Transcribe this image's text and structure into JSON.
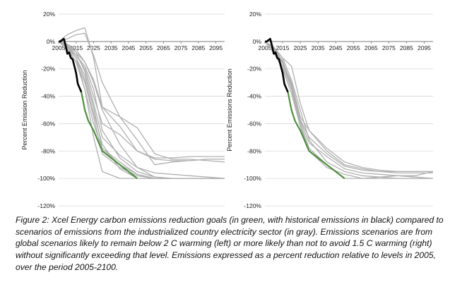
{
  "chart_data": [
    {
      "type": "line",
      "ylabel": "Percent Emission Reduction",
      "ylim": [
        -120,
        20
      ],
      "yticks": [
        20,
        0,
        -20,
        -40,
        -60,
        -80,
        -100,
        -120
      ],
      "ytick_labels": [
        "20%",
        "0%",
        "-20%",
        "-40%",
        "-60%",
        "-80%",
        "-100%",
        "-120%"
      ],
      "xlim": [
        2005,
        2100
      ],
      "xtick_labels": [
        "2005",
        "2015",
        "2025",
        "2035",
        "2045",
        "2055",
        "2065",
        "2075",
        "2085",
        "2095"
      ],
      "grid": true,
      "historical": {
        "color": "#000000",
        "x": [
          2005,
          2006,
          2007,
          2008,
          2009,
          2010,
          2011,
          2012,
          2013,
          2014,
          2015,
          2016,
          2017,
          2018
        ],
        "y": [
          0,
          0,
          1,
          2,
          -3,
          -9,
          -8,
          -12,
          -13,
          -18,
          -23,
          -31,
          -34,
          -37
        ]
      },
      "goal": {
        "color": "#4f8f3f",
        "x": [
          2018,
          2020,
          2022,
          2025,
          2030,
          2040,
          2050
        ],
        "y": [
          -37,
          -50,
          -58,
          -65,
          -80,
          -90,
          -100
        ]
      },
      "scenarios": {
        "color": "#b0b0b0",
        "lines": [
          {
            "x": [
              2005,
              2010,
              2015,
              2020,
              2025,
              2030,
              2040,
              2050,
              2060,
              2070,
              2080,
              2090,
              2100
            ],
            "y": [
              0,
              5,
              8,
              10,
              -12,
              -48,
              -55,
              -63,
              -82,
              -86,
              -86,
              -87,
              -88
            ]
          },
          {
            "x": [
              2005,
              2010,
              2015,
              2020,
              2025,
              2030,
              2040,
              2050,
              2060,
              2070,
              2080,
              2090,
              2100
            ],
            "y": [
              0,
              2,
              5,
              6,
              -10,
              -30,
              -55,
              -72,
              -90,
              -88,
              -87,
              -86,
              -86
            ]
          },
          {
            "x": [
              2005,
              2010,
              2015,
              2020,
              2025,
              2030,
              2040,
              2050,
              2060,
              2070,
              2080,
              2090,
              2100
            ],
            "y": [
              0,
              -3,
              -10,
              -20,
              -40,
              -60,
              -68,
              -80,
              -85,
              -85,
              -84,
              -84,
              -84
            ]
          },
          {
            "x": [
              2005,
              2010,
              2015,
              2020,
              2025,
              2030,
              2040,
              2050,
              2060,
              2070,
              2080,
              2090,
              2100
            ],
            "y": [
              0,
              -5,
              -12,
              -25,
              -48,
              -78,
              -90,
              -97,
              -100,
              -100,
              -100,
              -100,
              -100
            ]
          },
          {
            "x": [
              2005,
              2010,
              2015,
              2020,
              2025,
              2030,
              2040,
              2050,
              2060,
              2070,
              2080,
              2090,
              2100
            ],
            "y": [
              0,
              -4,
              -10,
              -18,
              -35,
              -65,
              -85,
              -95,
              -99,
              -100,
              -100,
              -100,
              -100
            ]
          },
          {
            "x": [
              2005,
              2010,
              2015,
              2020,
              2025,
              2030,
              2040,
              2050,
              2060,
              2070,
              2080,
              2090,
              2100
            ],
            "y": [
              0,
              -6,
              -15,
              -30,
              -55,
              -82,
              -92,
              -98,
              -100,
              -100,
              -100,
              -100,
              -100
            ]
          },
          {
            "x": [
              2005,
              2010,
              2015,
              2020,
              2025,
              2030,
              2040,
              2050,
              2060,
              2070,
              2080,
              2090,
              2100
            ],
            "y": [
              0,
              -3,
              -8,
              -15,
              -30,
              -50,
              -75,
              -92,
              -99,
              -100,
              -100,
              -100,
              -100
            ]
          },
          {
            "x": [
              2005,
              2010,
              2015,
              2020,
              2025,
              2030,
              2040,
              2050,
              2060,
              2070,
              2080,
              2090,
              2100
            ],
            "y": [
              0,
              -5,
              -15,
              -35,
              -60,
              -78,
              -88,
              -97,
              -100,
              -100,
              -100,
              -100,
              -100
            ]
          },
          {
            "x": [
              2005,
              2010,
              2015,
              2020,
              2025,
              2030,
              2040,
              2050,
              2060,
              2070,
              2080,
              2090,
              2100
            ],
            "y": [
              0,
              -2,
              -8,
              -22,
              -45,
              -70,
              -83,
              -92,
              -96,
              -97,
              -98,
              -99,
              -100
            ]
          },
          {
            "x": [
              2005,
              2010,
              2015,
              2020,
              2025,
              2030,
              2040,
              2050,
              2060,
              2070,
              2080,
              2090,
              2100
            ],
            "y": [
              0,
              -4,
              -12,
              -28,
              -52,
              -75,
              -93,
              -100,
              -100,
              -100,
              -100,
              -100,
              -100
            ]
          },
          {
            "x": [
              2005,
              2010,
              2015,
              2020,
              2025,
              2030,
              2040,
              2050,
              2060,
              2070,
              2080,
              2090,
              2100
            ],
            "y": [
              0,
              -3,
              -12,
              -35,
              -70,
              -95,
              -100,
              -100,
              -100,
              -100,
              -100,
              -100,
              -100
            ]
          },
          {
            "x": [
              2005,
              2010,
              2015,
              2020,
              2025,
              2030,
              2040,
              2050,
              2060,
              2070,
              2080,
              2090,
              2100
            ],
            "y": [
              0,
              -2,
              -6,
              -15,
              -28,
              -48,
              -62,
              -80,
              -86,
              -87,
              -87,
              -86,
              -86
            ]
          }
        ]
      }
    },
    {
      "type": "line",
      "ylabel": "Percent Emissions Reduction",
      "ylim": [
        -120,
        20
      ],
      "yticks": [
        20,
        0,
        -20,
        -40,
        -60,
        -80,
        -100,
        -120
      ],
      "ytick_labels": [
        "20%",
        "0%",
        "-20%",
        "-40%",
        "-60%",
        "-80%",
        "-100%",
        "-120%"
      ],
      "xlim": [
        2005,
        2100
      ],
      "xtick_labels": [
        "2005",
        "2015",
        "2025",
        "2035",
        "2045",
        "2055",
        "2065",
        "2075",
        "2085",
        "2095"
      ],
      "grid": true,
      "historical": {
        "color": "#000000",
        "x": [
          2005,
          2006,
          2007,
          2008,
          2009,
          2010,
          2011,
          2012,
          2013,
          2014,
          2015,
          2016,
          2017,
          2018
        ],
        "y": [
          0,
          0,
          1,
          2,
          -3,
          -9,
          -8,
          -12,
          -13,
          -18,
          -23,
          -31,
          -34,
          -37
        ]
      },
      "goal": {
        "color": "#4f8f3f",
        "x": [
          2018,
          2020,
          2022,
          2025,
          2030,
          2040,
          2050
        ],
        "y": [
          -37,
          -50,
          -58,
          -65,
          -80,
          -90,
          -100
        ]
      },
      "scenarios": {
        "color": "#b0b0b0",
        "lines": [
          {
            "x": [
              2005,
              2010,
              2015,
              2020,
              2025,
              2030,
              2040,
              2050,
              2060,
              2070,
              2080,
              2090,
              2100
            ],
            "y": [
              0,
              -5,
              -12,
              -18,
              -45,
              -65,
              -80,
              -90,
              -93,
              -95,
              -95,
              -95,
              -95
            ]
          },
          {
            "x": [
              2005,
              2010,
              2015,
              2020,
              2025,
              2030,
              2040,
              2050,
              2060,
              2070,
              2080,
              2090,
              2100
            ],
            "y": [
              0,
              -6,
              -15,
              -30,
              -55,
              -65,
              -78,
              -88,
              -92,
              -94,
              -95,
              -95,
              -95
            ]
          },
          {
            "x": [
              2005,
              2010,
              2015,
              2020,
              2025,
              2030,
              2040,
              2050,
              2060,
              2070,
              2080,
              2090,
              2100
            ],
            "y": [
              0,
              -8,
              -20,
              -38,
              -62,
              -80,
              -92,
              -97,
              -100,
              -100,
              -100,
              -100,
              -100
            ]
          },
          {
            "x": [
              2005,
              2010,
              2015,
              2020,
              2025,
              2030,
              2040,
              2050,
              2060,
              2070,
              2080,
              2090,
              2100
            ],
            "y": [
              0,
              -4,
              -12,
              -28,
              -50,
              -72,
              -88,
              -95,
              -98,
              -99,
              -100,
              -100,
              -100
            ]
          },
          {
            "x": [
              2005,
              2010,
              2015,
              2020,
              2025,
              2030,
              2040,
              2050,
              2060,
              2070,
              2080,
              2090,
              2100
            ],
            "y": [
              0,
              -7,
              -18,
              -35,
              -60,
              -78,
              -90,
              -100,
              -100,
              -99,
              -98,
              -98,
              -95
            ]
          },
          {
            "x": [
              2005,
              2010,
              2015,
              2020,
              2025,
              2030,
              2040,
              2050,
              2060,
              2070,
              2080,
              2090,
              2100
            ],
            "y": [
              0,
              -5,
              -14,
              -32,
              -58,
              -74,
              -84,
              -93,
              -96,
              -97,
              -98,
              -99,
              -100
            ]
          },
          {
            "x": [
              2005,
              2010,
              2015,
              2020,
              2025,
              2030,
              2040,
              2050,
              2060,
              2070,
              2080,
              2090,
              2100
            ],
            "y": [
              0,
              -6,
              -16,
              -33,
              -57,
              -70,
              -82,
              -91,
              -94,
              -95,
              -96,
              -96,
              -96
            ]
          }
        ]
      }
    }
  ],
  "caption": "Figure 2: Xcel Energy carbon emissions reduction goals (in green, with historical emissions in black) compared to scenarios of emissions from the industrialized country electricity sector (in gray). Emissions scenarios are from global scenarios likely to remain below 2 C warming (left) or more likely than not to avoid 1.5 C warming (right) without significantly exceeding that level. Emissions expressed as a percent reduction relative to levels in 2005, over the period 2005-2100."
}
